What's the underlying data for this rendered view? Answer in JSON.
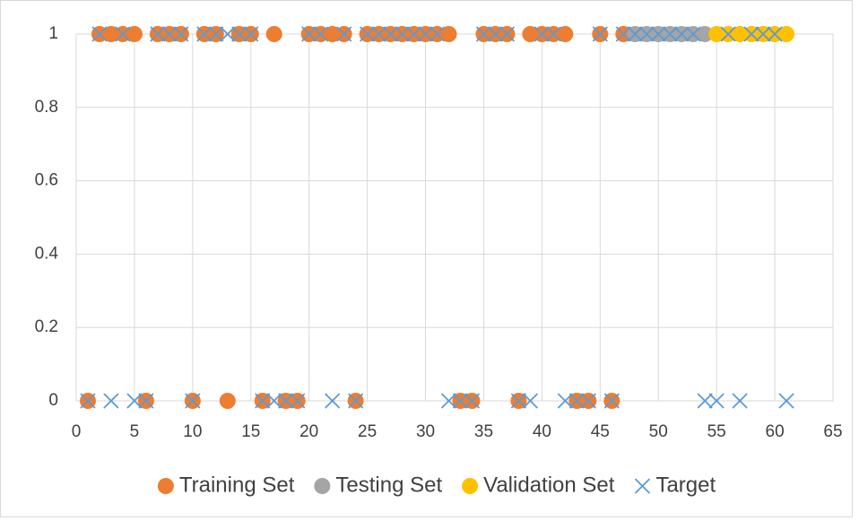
{
  "chart_data": {
    "type": "scatter",
    "xlim": [
      0,
      65
    ],
    "xticks": [
      0,
      5,
      10,
      15,
      20,
      25,
      30,
      35,
      40,
      45,
      50,
      55,
      60,
      65
    ],
    "ylim": [
      0,
      1
    ],
    "yticks": [
      0,
      0.2,
      0.4,
      0.6,
      0.8,
      1
    ],
    "grid": true,
    "legend": "bottom",
    "series": [
      {
        "name": "Training Set",
        "color": "#ED7D31",
        "marker": "circle",
        "x": [
          1,
          2,
          3,
          4,
          5,
          6,
          7,
          8,
          9,
          10,
          11,
          12,
          13,
          14,
          15,
          16,
          17,
          18,
          19,
          20,
          21,
          22,
          23,
          24,
          25,
          26,
          27,
          28,
          29,
          30,
          31,
          32,
          33,
          34,
          35,
          36,
          37,
          38,
          39,
          40,
          41,
          42,
          43,
          44,
          45,
          46,
          47
        ],
        "values": [
          0,
          1,
          1,
          1,
          1,
          0,
          1,
          1,
          1,
          0,
          1,
          1,
          0,
          1,
          1,
          0,
          1,
          0,
          0,
          1,
          1,
          1,
          1,
          0,
          1,
          1,
          1,
          1,
          1,
          1,
          1,
          1,
          0,
          0,
          1,
          1,
          1,
          0,
          1,
          1,
          1,
          1,
          0,
          0,
          1,
          0,
          1
        ]
      },
      {
        "name": "Testing Set",
        "color": "#A5A5A5",
        "marker": "circle",
        "x": [
          48,
          49,
          50,
          51,
          52,
          53,
          54
        ],
        "values": [
          1,
          1,
          1,
          1,
          1,
          1,
          1
        ]
      },
      {
        "name": "Validation Set",
        "color": "#FFC000",
        "marker": "circle",
        "x": [
          55,
          56,
          57,
          58,
          59,
          60,
          61
        ],
        "values": [
          1,
          1,
          1,
          1,
          1,
          1,
          1
        ]
      },
      {
        "name": "Target",
        "color": "#5B9BD5",
        "marker": "cross",
        "x": [
          1,
          2,
          3,
          4,
          5,
          6,
          7,
          8,
          9,
          10,
          11,
          12,
          13,
          14,
          15,
          16,
          17,
          18,
          19,
          20,
          21,
          22,
          23,
          24,
          25,
          26,
          27,
          28,
          29,
          30,
          31,
          32,
          33,
          34,
          35,
          36,
          37,
          38,
          39,
          40,
          41,
          42,
          43,
          44,
          45,
          46,
          47,
          48,
          49,
          50,
          51,
          52,
          53,
          54,
          55,
          56,
          57,
          58,
          59,
          60,
          61
        ],
        "values": [
          0,
          1,
          0,
          1,
          0,
          0,
          1,
          1,
          1,
          0,
          1,
          1,
          1,
          1,
          1,
          0,
          0,
          0,
          0,
          1,
          1,
          0,
          1,
          0,
          1,
          1,
          1,
          1,
          1,
          1,
          1,
          0,
          0,
          0,
          1,
          1,
          1,
          0,
          0,
          1,
          1,
          0,
          0,
          0,
          1,
          0,
          1,
          1,
          1,
          1,
          1,
          1,
          1,
          0,
          0,
          1,
          0,
          1,
          1,
          1,
          0
        ]
      }
    ]
  }
}
